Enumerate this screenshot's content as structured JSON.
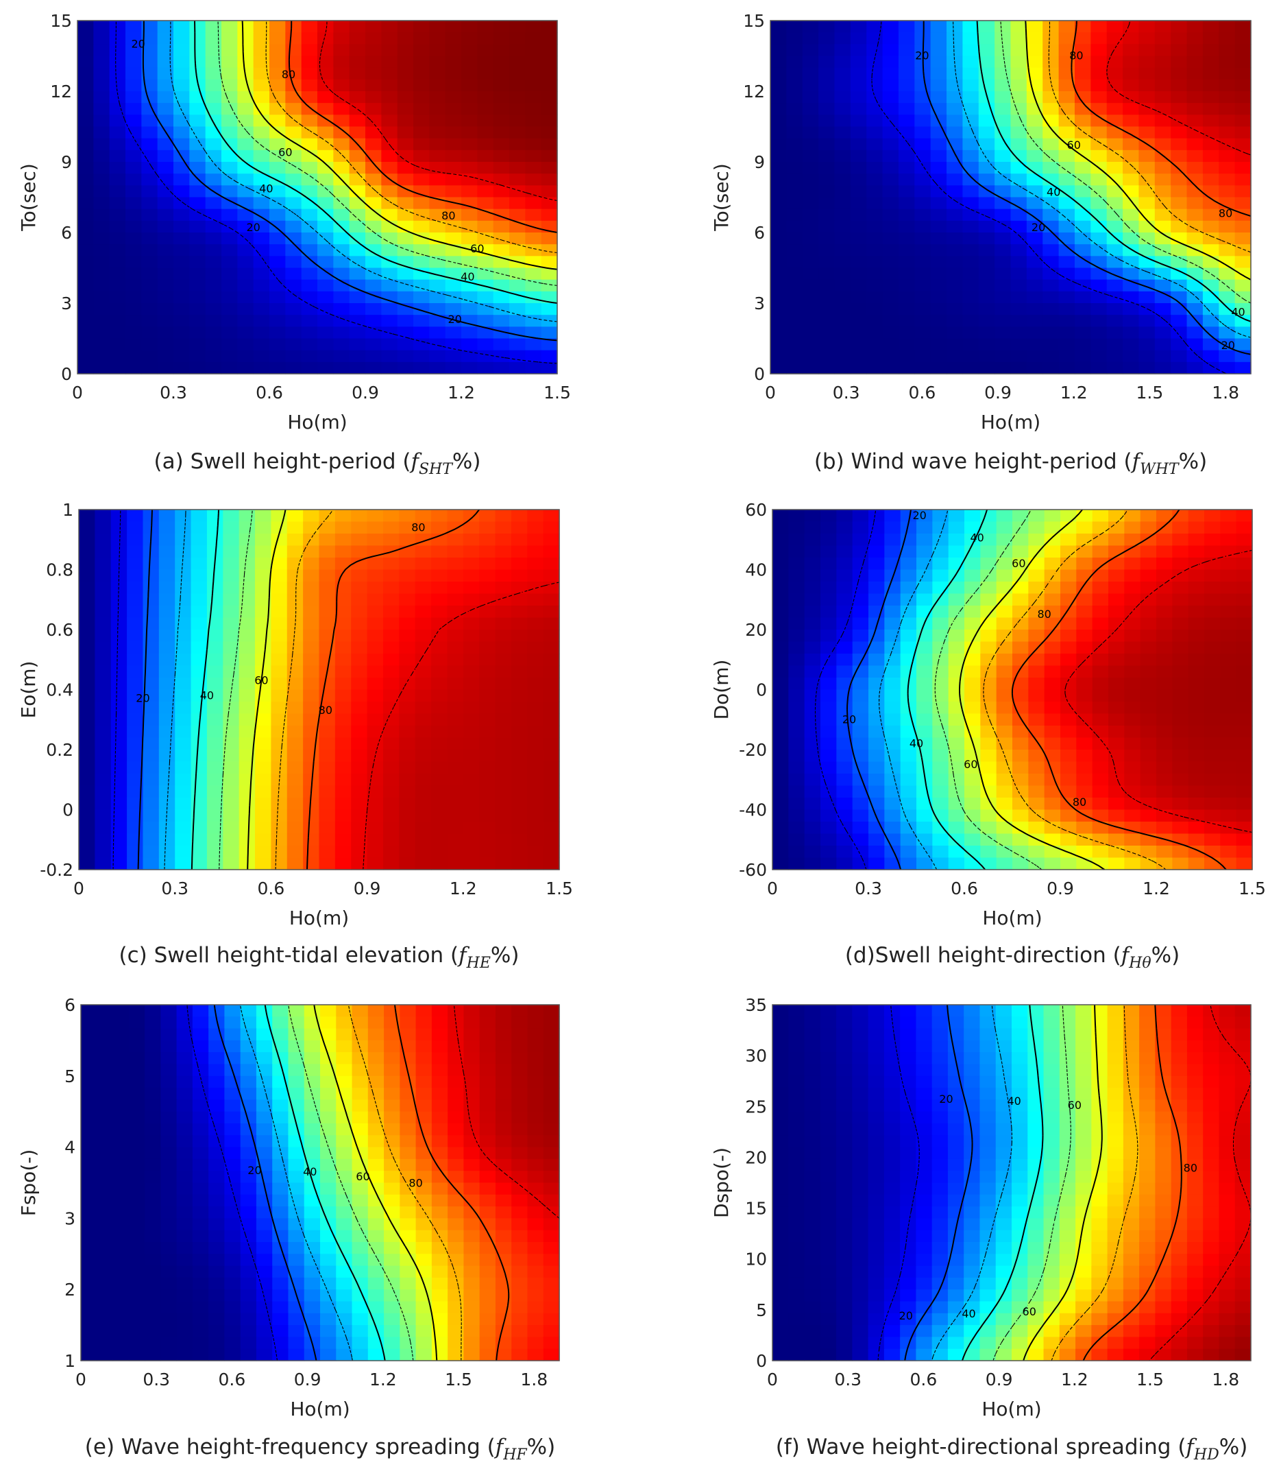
{
  "chart_data": [
    {
      "id": "a",
      "type": "heatmap",
      "caption": {
        "prefix": "(a) Swell height-period (",
        "symbol": "f",
        "sub": "SHT",
        "suffix": "%)"
      },
      "xlabel": "Ho(m)",
      "ylabel": "To(sec)",
      "xlim": [
        0,
        1.5
      ],
      "ylim": [
        0,
        15
      ],
      "xticks": [
        "0",
        "0.3",
        "0.6",
        "0.9",
        "1.2",
        "1.5"
      ],
      "yticks": [
        "0",
        "3",
        "6",
        "9",
        "12",
        "15"
      ],
      "x": [
        0,
        0.25,
        0.5,
        0.75,
        1.0,
        1.25,
        1.5
      ],
      "y": [
        0,
        3,
        6,
        9,
        12,
        15
      ],
      "z": [
        [
          0,
          0,
          1,
          2,
          3,
          5,
          7
        ],
        [
          0,
          1,
          4,
          11,
          20,
          30,
          40
        ],
        [
          0,
          3,
          10,
          30,
          57,
          70,
          80
        ],
        [
          0,
          12,
          38,
          58,
          88,
          94,
          97
        ],
        [
          0,
          24,
          55,
          87,
          96,
          99,
          100
        ],
        [
          0,
          25,
          58,
          88,
          96,
          99,
          100
        ]
      ],
      "contour_levels": [
        10,
        20,
        30,
        40,
        50,
        60,
        70,
        80,
        90
      ],
      "labeled_levels": [
        20,
        40,
        60,
        80
      ],
      "contour_labels": [
        {
          "text": "20",
          "x": 0.19,
          "y": 14.0
        },
        {
          "text": "80",
          "x": 0.66,
          "y": 12.7
        },
        {
          "text": "60",
          "x": 0.65,
          "y": 9.4
        },
        {
          "text": "40",
          "x": 0.59,
          "y": 7.85
        },
        {
          "text": "20",
          "x": 0.55,
          "y": 6.2
        },
        {
          "text": "80",
          "x": 1.16,
          "y": 6.7
        },
        {
          "text": "60",
          "x": 1.25,
          "y": 5.3
        },
        {
          "text": "40",
          "x": 1.22,
          "y": 4.1
        },
        {
          "text": "20",
          "x": 1.18,
          "y": 2.3
        }
      ],
      "colormap": "jet",
      "grid": false
    },
    {
      "id": "b",
      "type": "heatmap",
      "caption": {
        "prefix": "(b) Wind wave height-period (",
        "symbol": "f",
        "sub": "WHT",
        "suffix": "%)"
      },
      "xlabel": "Ho(m)",
      "ylabel": "To(sec)",
      "xlim": [
        0,
        1.9
      ],
      "ylim": [
        0,
        15
      ],
      "xticks": [
        "0",
        "0.3",
        "0.6",
        "0.9",
        "1.2",
        "1.5",
        "1.8"
      ],
      "yticks": [
        "0",
        "3",
        "6",
        "9",
        "12",
        "15"
      ],
      "x": [
        0,
        0.317,
        0.633,
        0.95,
        1.267,
        1.583,
        1.9
      ],
      "y": [
        0,
        3,
        6,
        9,
        12,
        15
      ],
      "z": [
        [
          0,
          0,
          0,
          0,
          1,
          4,
          12
        ],
        [
          0,
          0,
          1,
          3,
          6,
          17,
          50
        ],
        [
          0,
          1,
          3,
          9,
          33,
          63,
          76
        ],
        [
          0,
          2,
          12,
          37,
          60,
          80,
          89
        ],
        [
          0,
          7,
          21,
          50,
          85,
          94,
          97
        ],
        [
          0,
          5,
          22,
          54,
          84,
          93,
          98
        ]
      ],
      "contour_levels": [
        10,
        20,
        30,
        40,
        50,
        60,
        70,
        80,
        90
      ],
      "labeled_levels": [
        20,
        40,
        60,
        80
      ],
      "contour_labels": [
        {
          "text": "20",
          "x": 0.6,
          "y": 13.5
        },
        {
          "text": "80",
          "x": 1.21,
          "y": 13.5
        },
        {
          "text": "60",
          "x": 1.2,
          "y": 9.7
        },
        {
          "text": "40",
          "x": 1.12,
          "y": 7.7
        },
        {
          "text": "20",
          "x": 1.06,
          "y": 6.2
        },
        {
          "text": "80",
          "x": 1.8,
          "y": 6.8
        },
        {
          "text": "40",
          "x": 1.85,
          "y": 2.6
        },
        {
          "text": "20",
          "x": 1.81,
          "y": 1.2
        }
      ],
      "colormap": "jet",
      "grid": false
    },
    {
      "id": "c",
      "type": "heatmap",
      "caption": {
        "prefix": "(c) Swell height-tidal elevation (",
        "symbol": "f",
        "sub": "HE",
        "suffix": "%)"
      },
      "xlabel": "Ho(m)",
      "ylabel": "Eo(m)",
      "xlim": [
        0,
        1.5
      ],
      "ylim": [
        -0.2,
        1
      ],
      "xticks": [
        "0",
        "0.3",
        "0.6",
        "0.9",
        "1.2",
        "1.5"
      ],
      "yticks": [
        "-0.2",
        "0",
        "0.2",
        "0.4",
        "0.6",
        "0.8",
        "1"
      ],
      "x": [
        0,
        0.25,
        0.5,
        0.75,
        1.0,
        1.25,
        1.5
      ],
      "y": [
        -0.2,
        0.2,
        0.6,
        0.8,
        1.0
      ],
      "z": [
        [
          0,
          28,
          57,
          83,
          93,
          94,
          95
        ],
        [
          0,
          26,
          55,
          81,
          92,
          94,
          95
        ],
        [
          0,
          24,
          50,
          77,
          87,
          92,
          94
        ],
        [
          0,
          23,
          48,
          76,
          83,
          86,
          89
        ],
        [
          0,
          22,
          46,
          68,
          74,
          80,
          86
        ]
      ],
      "contour_levels": [
        10,
        20,
        30,
        40,
        50,
        60,
        70,
        80,
        90
      ],
      "labeled_levels": [
        20,
        40,
        60,
        80
      ],
      "contour_labels": [
        {
          "text": "20",
          "x": 0.2,
          "y": 0.37
        },
        {
          "text": "40",
          "x": 0.4,
          "y": 0.38
        },
        {
          "text": "60",
          "x": 0.57,
          "y": 0.43
        },
        {
          "text": "80",
          "x": 0.77,
          "y": 0.33
        },
        {
          "text": "80",
          "x": 1.06,
          "y": 0.94
        }
      ],
      "colormap": "jet",
      "grid": false
    },
    {
      "id": "d",
      "type": "heatmap",
      "caption": {
        "prefix": "(d)Swell height-direction  (",
        "symbol": "f",
        "sub": "Hθ",
        "suffix": "%)"
      },
      "xlabel": "Ho(m)",
      "ylabel": "Do(m)",
      "xlim": [
        0,
        1.5
      ],
      "ylim": [
        -60,
        60
      ],
      "xticks": [
        "0",
        "0.3",
        "0.6",
        "0.9",
        "1.2",
        "1.5"
      ],
      "yticks": [
        "-60",
        "-40",
        "-20",
        "0",
        "20",
        "40",
        "60"
      ],
      "x": [
        0,
        0.25,
        0.5,
        0.75,
        1.0,
        1.25,
        1.5
      ],
      "y": [
        -60,
        -40,
        -20,
        0,
        20,
        40,
        60
      ],
      "z": [
        [
          0,
          7,
          29,
          45,
          58,
          71,
          83
        ],
        [
          0,
          14,
          40,
          65,
          83,
          91,
          94
        ],
        [
          0,
          20,
          44,
          73,
          88,
          95,
          96
        ],
        [
          0,
          21,
          49,
          80,
          93,
          96,
          97
        ],
        [
          0,
          12,
          44,
          70,
          87,
          94,
          96
        ],
        [
          0,
          8,
          32,
          56,
          79,
          89,
          92
        ],
        [
          0,
          5,
          26,
          46,
          62,
          79,
          86
        ]
      ],
      "contour_levels": [
        10,
        20,
        30,
        40,
        50,
        60,
        70,
        80,
        90
      ],
      "labeled_levels": [
        20,
        40,
        60,
        80
      ],
      "contour_labels": [
        {
          "text": "20",
          "x": 0.46,
          "y": 58
        },
        {
          "text": "40",
          "x": 0.64,
          "y": 50.5
        },
        {
          "text": "60",
          "x": 0.77,
          "y": 42
        },
        {
          "text": "80",
          "x": 0.85,
          "y": 25
        },
        {
          "text": "20",
          "x": 0.24,
          "y": -10
        },
        {
          "text": "40",
          "x": 0.45,
          "y": -18
        },
        {
          "text": "60",
          "x": 0.62,
          "y": -25
        },
        {
          "text": "80",
          "x": 0.96,
          "y": -37.6
        }
      ],
      "colormap": "jet",
      "grid": false
    },
    {
      "id": "e",
      "type": "heatmap",
      "caption": {
        "prefix": "(e) Wave height-frequency spreading  (",
        "symbol": "f",
        "sub": "HF",
        "suffix": "%)"
      },
      "xlabel": "Ho(m)",
      "ylabel": "Fspo(-)",
      "xlim": [
        0,
        1.9
      ],
      "ylim": [
        1,
        6
      ],
      "xticks": [
        "0",
        "0.3",
        "0.6",
        "0.9",
        "1.2",
        "1.5",
        "1.8"
      ],
      "yticks": [
        "1",
        "2",
        "3",
        "4",
        "5",
        "6"
      ],
      "x": [
        0,
        0.317,
        0.633,
        0.95,
        1.267,
        1.583,
        1.9
      ],
      "y": [
        1,
        2,
        3,
        4,
        5,
        6
      ],
      "z": [
        [
          0,
          0,
          3,
          21,
          45,
          76,
          88
        ],
        [
          0,
          0,
          5,
          28,
          52,
          75,
          85
        ],
        [
          0,
          1,
          10,
          38,
          63,
          80,
          90
        ],
        [
          0,
          1,
          15,
          47,
          73,
          90,
          96
        ],
        [
          0,
          2,
          22,
          55,
          78,
          92,
          97
        ],
        [
          0,
          3,
          30,
          62,
          81,
          93,
          97
        ]
      ],
      "contour_levels": [
        10,
        20,
        30,
        40,
        50,
        60,
        70,
        80,
        90
      ],
      "labeled_levels": [
        20,
        40,
        60,
        80
      ],
      "contour_labels": [
        {
          "text": "20",
          "x": 0.69,
          "y": 3.67
        },
        {
          "text": "40",
          "x": 0.91,
          "y": 3.65
        },
        {
          "text": "60",
          "x": 1.12,
          "y": 3.58
        },
        {
          "text": "80",
          "x": 1.33,
          "y": 3.49
        }
      ],
      "colormap": "jet",
      "grid": false
    },
    {
      "id": "f",
      "type": "heatmap",
      "caption": {
        "prefix": "(f) Wave height-directional spreading (",
        "symbol": "f",
        "sub": "HD",
        "suffix": "%)"
      },
      "xlabel": "Ho(m)",
      "ylabel": "Dspo(-)",
      "xlim": [
        0,
        1.9
      ],
      "ylim": [
        0,
        35
      ],
      "xticks": [
        "0",
        "0.3",
        "0.6",
        "0.9",
        "1.2",
        "1.5",
        "1.8"
      ],
      "yticks": [
        "0",
        "5",
        "10",
        "15",
        "20",
        "25",
        "30",
        "35"
      ],
      "x": [
        0,
        0.317,
        0.633,
        0.95,
        1.267,
        1.583,
        1.9
      ],
      "y": [
        0,
        7,
        14,
        21,
        28,
        35
      ],
      "z": [
        [
          0,
          3,
          30,
          56,
          82,
          92,
          98
        ],
        [
          0,
          3,
          18,
          42,
          67,
          84,
          93
        ],
        [
          0,
          3,
          14,
          35,
          62,
          79,
          90
        ],
        [
          0,
          3,
          12,
          30,
          57,
          78,
          92
        ],
        [
          0,
          4,
          15,
          32,
          58,
          82,
          90
        ],
        [
          0,
          5,
          17,
          35,
          59,
          84,
          93
        ]
      ],
      "contour_levels": [
        10,
        20,
        30,
        40,
        50,
        60,
        70,
        80,
        90
      ],
      "labeled_levels": [
        20,
        40,
        60,
        80
      ],
      "contour_labels": [
        {
          "text": "20",
          "x": 0.69,
          "y": 25.7
        },
        {
          "text": "40",
          "x": 0.96,
          "y": 25.5
        },
        {
          "text": "60",
          "x": 1.2,
          "y": 25.1
        },
        {
          "text": "80",
          "x": 1.66,
          "y": 18.9
        },
        {
          "text": "20",
          "x": 0.53,
          "y": 4.4
        },
        {
          "text": "40",
          "x": 0.78,
          "y": 4.6
        },
        {
          "text": "60",
          "x": 1.02,
          "y": 4.8
        }
      ],
      "colormap": "jet",
      "grid": false
    }
  ]
}
